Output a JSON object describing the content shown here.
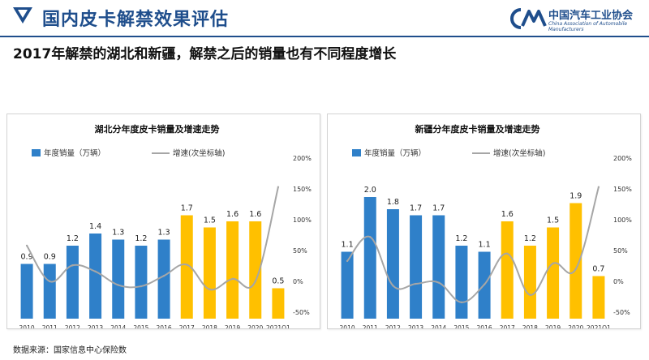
{
  "header": {
    "title": "国内皮卡解禁效果评估",
    "org_name": "中国汽车工业协会",
    "org_subtitle": "China Association of Automobile Manufacturers"
  },
  "subtitle": "2017年解禁的湖北和新疆，解禁之后的销量也有不同程度增长",
  "source": "数据来源：国家信息中心保险数",
  "colors": {
    "blue": "#2f80c9",
    "yellow": "#ffc000",
    "line": "#a6a6a6",
    "brand": "#1f4e8c"
  },
  "chart_data": [
    {
      "type": "bar",
      "title": "湖北分年度皮卡销量及增速走势",
      "categories": [
        "2010",
        "2011",
        "2012",
        "2013",
        "2014",
        "2015",
        "2016",
        "2017",
        "2018",
        "2019",
        "2020",
        "2021Q1"
      ],
      "series": [
        {
          "name": "年度销量（万辆）",
          "values": [
            0.9,
            0.9,
            1.2,
            1.4,
            1.3,
            1.2,
            1.3,
            1.7,
            1.5,
            1.6,
            1.6,
            0.5
          ]
        },
        {
          "name": "增速(次坐标轴)",
          "axis": "secondary",
          "values": [
            0.58,
            0.0,
            0.26,
            0.16,
            -0.06,
            -0.08,
            0.09,
            0.27,
            -0.13,
            0.04,
            0.0,
            1.53
          ]
        }
      ],
      "bar_colors": [
        "blue",
        "blue",
        "blue",
        "blue",
        "blue",
        "blue",
        "blue",
        "yellow",
        "yellow",
        "yellow",
        "yellow",
        "yellow"
      ],
      "y2lim": [
        -0.5,
        2.0
      ],
      "y2ticks": [
        "200%",
        "150%",
        "100%",
        "50%",
        "0%",
        "-50%"
      ]
    },
    {
      "type": "bar",
      "title": "新疆分年度皮卡销量及增速走势",
      "categories": [
        "2010",
        "2011",
        "2012",
        "2013",
        "2014",
        "2015",
        "2016",
        "2017",
        "2018",
        "2019",
        "2020",
        "2021Q1"
      ],
      "series": [
        {
          "name": "年度销量（万辆）",
          "values": [
            1.1,
            2.0,
            1.8,
            1.7,
            1.7,
            1.2,
            1.1,
            1.6,
            1.2,
            1.5,
            1.9,
            0.7
          ]
        },
        {
          "name": "增速(次坐标轴)",
          "axis": "secondary",
          "values": [
            0.33,
            0.72,
            -0.07,
            -0.04,
            -0.02,
            -0.34,
            -0.05,
            0.45,
            -0.22,
            0.29,
            0.2,
            1.53
          ]
        }
      ],
      "bar_colors": [
        "blue",
        "blue",
        "blue",
        "blue",
        "blue",
        "blue",
        "blue",
        "yellow",
        "yellow",
        "yellow",
        "yellow",
        "yellow"
      ],
      "y2lim": [
        -0.5,
        2.0
      ],
      "y2ticks": [
        "200%",
        "150%",
        "100%",
        "50%",
        "0%",
        "-50%"
      ]
    }
  ]
}
